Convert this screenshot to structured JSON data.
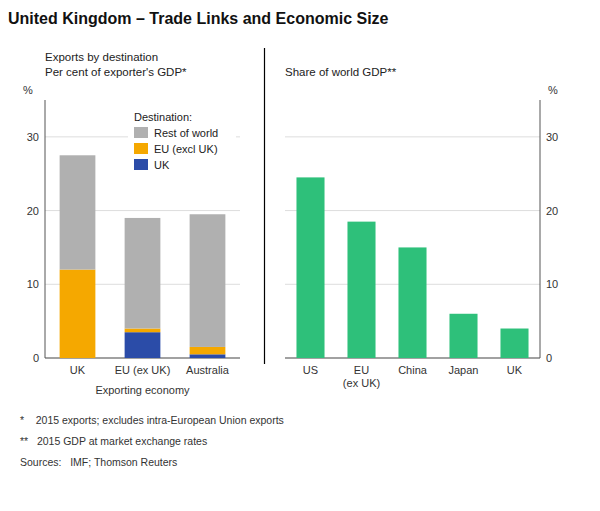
{
  "chart_data": [
    {
      "type": "bar",
      "stacked": true,
      "title": "United Kingdom – Trade Links and Economic Size",
      "subtitle": [
        "Exports by destination",
        "Per cent of exporter's GDP*"
      ],
      "xlabel": "Exporting economy",
      "ylabel": "%",
      "categories": [
        "UK",
        "EU (ex UK)",
        "Australia"
      ],
      "series": [
        {
          "name": "UK",
          "color": "#2b4ca8",
          "values": [
            0.0,
            3.5,
            0.5
          ]
        },
        {
          "name": "EU (excl UK)",
          "color": "#f5a800",
          "values": [
            12.0,
            0.5,
            1.0
          ]
        },
        {
          "name": "Rest of world",
          "color": "#b0b0b0",
          "values": [
            15.5,
            15.0,
            18.0
          ]
        }
      ],
      "legend_title": "Destination:",
      "legend": "upper right",
      "ylim": [
        0,
        35
      ],
      "yticks": [
        0,
        10,
        20,
        30
      ],
      "grid": true,
      "annotations": [
        "*    2015 exports; excludes intra-European Union exports",
        "**   2015 GDP at market exchange rates",
        "Sources:   IMF; Thomson Reuters"
      ]
    },
    {
      "type": "bar",
      "subtitle": "Share of world GDP**",
      "ylabel": "%",
      "categories": [
        "US",
        "EU\n(ex UK)",
        "China",
        "Japan",
        "UK"
      ],
      "values": [
        24.5,
        18.5,
        15.0,
        6.0,
        4.0
      ],
      "color": "#2ec07a",
      "ylim": [
        0,
        35
      ],
      "yticks": [
        0,
        10,
        20,
        30
      ],
      "grid": true
    }
  ]
}
